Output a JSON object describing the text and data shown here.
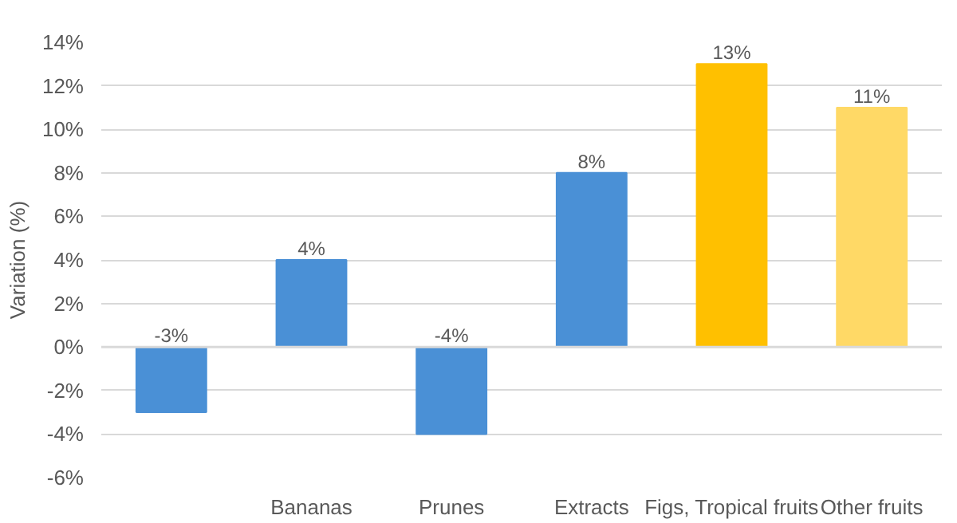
{
  "chart_data": {
    "type": "bar",
    "ylabel": "Variation (%)",
    "categories": [
      null,
      "Bananas",
      "Prunes",
      "Extracts",
      "Figs, Tropical fruits",
      "Other fruits"
    ],
    "values": [
      -3,
      4,
      -4,
      8,
      13,
      11
    ],
    "colors": [
      "#4a90d6",
      "#4a90d6",
      "#4a90d6",
      "#4a90d6",
      "#ffc000",
      "#ffd966"
    ],
    "value_labels": [
      "-3%",
      "4%",
      "-4%",
      "8%",
      "13%",
      "11%"
    ],
    "ylim": [
      -6,
      14
    ],
    "yticks": [
      {
        "value": -6,
        "label": "-6%"
      },
      {
        "value": -4,
        "label": "-4%"
      },
      {
        "value": -2,
        "label": "-2%"
      },
      {
        "value": 0,
        "label": "0%"
      },
      {
        "value": 2,
        "label": "2%"
      },
      {
        "value": 4,
        "label": "4%"
      },
      {
        "value": 6,
        "label": "6%"
      },
      {
        "value": 8,
        "label": "8%"
      },
      {
        "value": 10,
        "label": "10%"
      },
      {
        "value": 12,
        "label": "12%"
      },
      {
        "value": 14,
        "label": "14%"
      }
    ],
    "grid": "y"
  }
}
